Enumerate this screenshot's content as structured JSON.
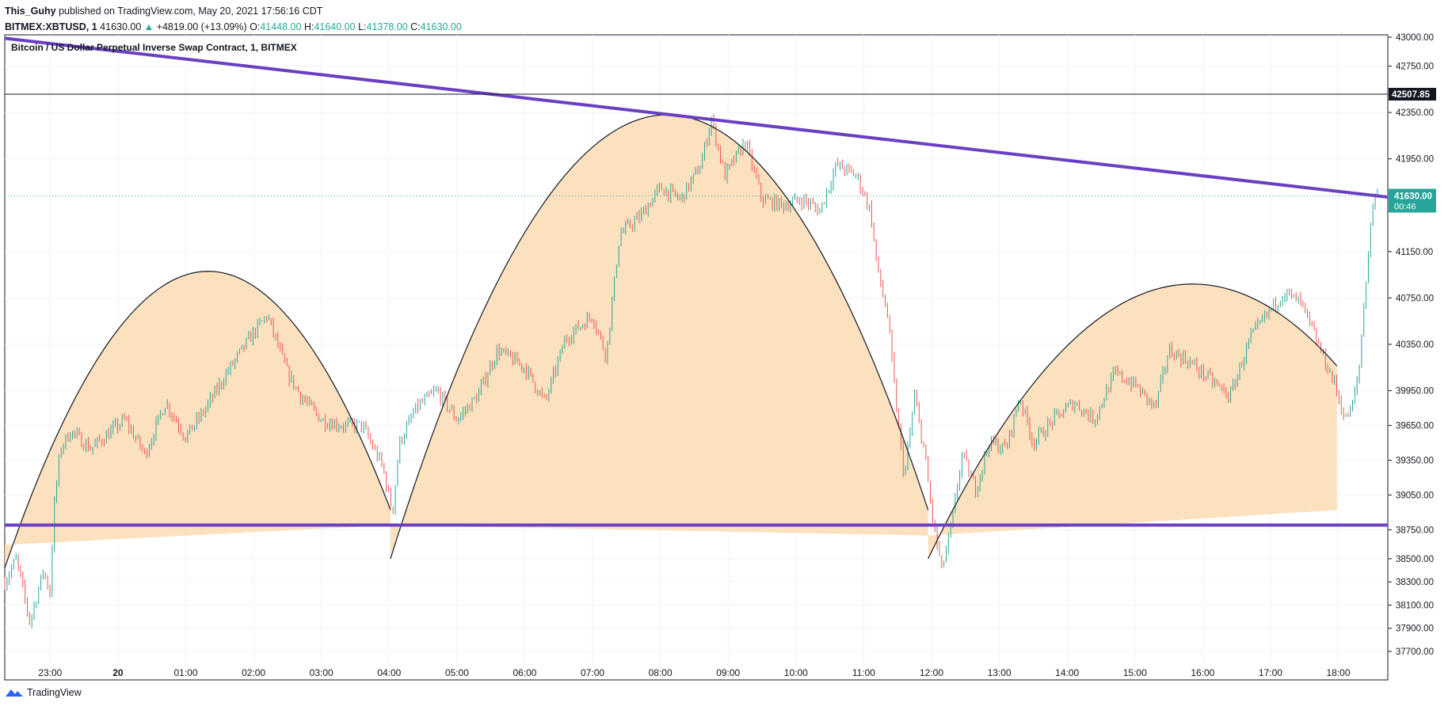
{
  "header": {
    "author": "This_Guhy",
    "published": "published on TradingView.com, May 20, 2021 17:56:16 CDT",
    "symbol": "BITMEX:XBTUSD, 1",
    "last": "41630.00",
    "change_arrow": "▲",
    "change": "+4819.00 (+13.09%)",
    "o_label": "O:",
    "o_value": "41448.00",
    "h_label": "H:",
    "h_value": "41640.00",
    "l_label": "L:",
    "l_value": "41378.00",
    "c_label": "C:",
    "c_value": "41630.00"
  },
  "footer": {
    "brand": "TradingView",
    "logo_icon": "tradingview-logo-icon"
  },
  "colors": {
    "up": "#26a69a",
    "down": "#ef5350",
    "trendline": "#6a3fc1",
    "fill": "#fcdcb4",
    "fill_dark": "#f8c98f",
    "last_price_bg": "#26a69a"
  },
  "chart_data": {
    "type": "candlestick",
    "title": "Bitcoin / US Dollar Perpetual Inverse Swap Contract, 1, BITMEX",
    "xlabel": "",
    "ylabel": "",
    "ylim": [
      37550,
      43020
    ],
    "y_ticks": [
      "43000.00",
      "42750.00",
      "42350.00",
      "41950.00",
      "41150.00",
      "40750.00",
      "40350.00",
      "39950.00",
      "39650.00",
      "39350.00",
      "39050.00",
      "38750.00",
      "38500.00",
      "38300.00",
      "38100.00",
      "37900.00",
      "37700.00"
    ],
    "x_ticks": [
      "23:00",
      "20",
      "01:00",
      "02:00",
      "03:00",
      "04:00",
      "05:00",
      "06:00",
      "07:00",
      "08:00",
      "09:00",
      "10:00",
      "11:00",
      "12:00",
      "13:00",
      "14:00",
      "15:00",
      "16:00",
      "17:00",
      "18:00"
    ],
    "x_range_hours": [
      -0.67,
      19.73
    ],
    "last_price": {
      "value": 41630.0,
      "label": "41630.00",
      "countdown": "00:46"
    },
    "horizontal_level": {
      "value": 42507.85,
      "label": "42507.85"
    },
    "support_line": {
      "value": 38790
    },
    "resistance_trendline": {
      "start": {
        "t": -0.67,
        "price": 42990
      },
      "end": {
        "t": 19.73,
        "price": 41620
      }
    },
    "price_path": [
      {
        "t": -0.67,
        "price": 38300
      },
      {
        "t": -0.5,
        "price": 38500
      },
      {
        "t": -0.3,
        "price": 37950
      },
      {
        "t": -0.1,
        "price": 38400
      },
      {
        "t": 0.0,
        "price": 38200
      },
      {
        "t": 0.05,
        "price": 38900
      },
      {
        "t": 0.15,
        "price": 39450
      },
      {
        "t": 0.3,
        "price": 39600
      },
      {
        "t": 0.6,
        "price": 39450
      },
      {
        "t": 0.9,
        "price": 39600
      },
      {
        "t": 1.1,
        "price": 39700
      },
      {
        "t": 1.4,
        "price": 39400
      },
      {
        "t": 1.7,
        "price": 39850
      },
      {
        "t": 2.0,
        "price": 39550
      },
      {
        "t": 2.3,
        "price": 39800
      },
      {
        "t": 2.6,
        "price": 40100
      },
      {
        "t": 3.0,
        "price": 40450
      },
      {
        "t": 3.2,
        "price": 40600
      },
      {
        "t": 3.5,
        "price": 40100
      },
      {
        "t": 3.7,
        "price": 39900
      },
      {
        "t": 4.0,
        "price": 39700
      },
      {
        "t": 4.3,
        "price": 39650
      },
      {
        "t": 4.6,
        "price": 39650
      },
      {
        "t": 4.9,
        "price": 39300
      },
      {
        "t": 5.05,
        "price": 38900
      },
      {
        "t": 5.15,
        "price": 39500
      },
      {
        "t": 5.4,
        "price": 39800
      },
      {
        "t": 5.7,
        "price": 39950
      },
      {
        "t": 6.0,
        "price": 39700
      },
      {
        "t": 6.3,
        "price": 39900
      },
      {
        "t": 6.6,
        "price": 40300
      },
      {
        "t": 7.0,
        "price": 40150
      },
      {
        "t": 7.3,
        "price": 39850
      },
      {
        "t": 7.6,
        "price": 40400
      },
      {
        "t": 8.0,
        "price": 40600
      },
      {
        "t": 8.2,
        "price": 40250
      },
      {
        "t": 8.4,
        "price": 41300
      },
      {
        "t": 8.7,
        "price": 41450
      },
      {
        "t": 9.0,
        "price": 41700
      },
      {
        "t": 9.3,
        "price": 41600
      },
      {
        "t": 9.6,
        "price": 41900
      },
      {
        "t": 9.75,
        "price": 42300
      },
      {
        "t": 9.95,
        "price": 41800
      },
      {
        "t": 10.25,
        "price": 42100
      },
      {
        "t": 10.5,
        "price": 41600
      },
      {
        "t": 10.8,
        "price": 41550
      },
      {
        "t": 11.1,
        "price": 41600
      },
      {
        "t": 11.35,
        "price": 41500
      },
      {
        "t": 11.6,
        "price": 41900
      },
      {
        "t": 11.9,
        "price": 41800
      },
      {
        "t": 12.1,
        "price": 41500
      },
      {
        "t": 12.2,
        "price": 41000
      },
      {
        "t": 12.35,
        "price": 40600
      },
      {
        "t": 12.5,
        "price": 39700
      },
      {
        "t": 12.6,
        "price": 39200
      },
      {
        "t": 12.75,
        "price": 39900
      },
      {
        "t": 12.9,
        "price": 39400
      },
      {
        "t": 13.0,
        "price": 38900
      },
      {
        "t": 13.15,
        "price": 38400
      },
      {
        "t": 13.3,
        "price": 38800
      },
      {
        "t": 13.45,
        "price": 39400
      },
      {
        "t": 13.65,
        "price": 39100
      },
      {
        "t": 13.85,
        "price": 39500
      },
      {
        "t": 14.1,
        "price": 39450
      },
      {
        "t": 14.3,
        "price": 39900
      },
      {
        "t": 14.5,
        "price": 39500
      },
      {
        "t": 14.8,
        "price": 39700
      },
      {
        "t": 15.1,
        "price": 39850
      },
      {
        "t": 15.4,
        "price": 39700
      },
      {
        "t": 15.7,
        "price": 40100
      },
      {
        "t": 16.0,
        "price": 40000
      },
      {
        "t": 16.3,
        "price": 39800
      },
      {
        "t": 16.5,
        "price": 40300
      },
      {
        "t": 16.8,
        "price": 40200
      },
      {
        "t": 17.1,
        "price": 40050
      },
      {
        "t": 17.4,
        "price": 39900
      },
      {
        "t": 17.7,
        "price": 40400
      },
      {
        "t": 18.0,
        "price": 40650
      },
      {
        "t": 18.2,
        "price": 40800
      },
      {
        "t": 18.45,
        "price": 40700
      },
      {
        "t": 18.7,
        "price": 40350
      },
      {
        "t": 18.95,
        "price": 40000
      },
      {
        "t": 19.1,
        "price": 39700
      },
      {
        "t": 19.2,
        "price": 39800
      },
      {
        "t": 19.3,
        "price": 40100
      },
      {
        "t": 19.42,
        "price": 41000
      },
      {
        "t": 19.52,
        "price": 41640
      },
      {
        "t": 19.6,
        "price": 41630
      }
    ],
    "shapes": [
      {
        "name": "left-shoulder-arc",
        "t_start": -0.67,
        "t_end": 5.02,
        "apex_t": 2.33,
        "apex_price": 40980,
        "base_price_start": 38620,
        "base_price_end": 38790
      },
      {
        "name": "head-arc",
        "t_start": 5.02,
        "t_end": 12.95,
        "apex_t": 9.1,
        "apex_price": 42330,
        "base_price_start": 38790,
        "base_price_end": 38700
      },
      {
        "name": "right-shoulder-arc",
        "t_start": 12.95,
        "t_end": 18.98,
        "apex_t": 16.85,
        "apex_price": 40870,
        "base_price_start": 38700,
        "base_price_end": 38920
      }
    ]
  }
}
